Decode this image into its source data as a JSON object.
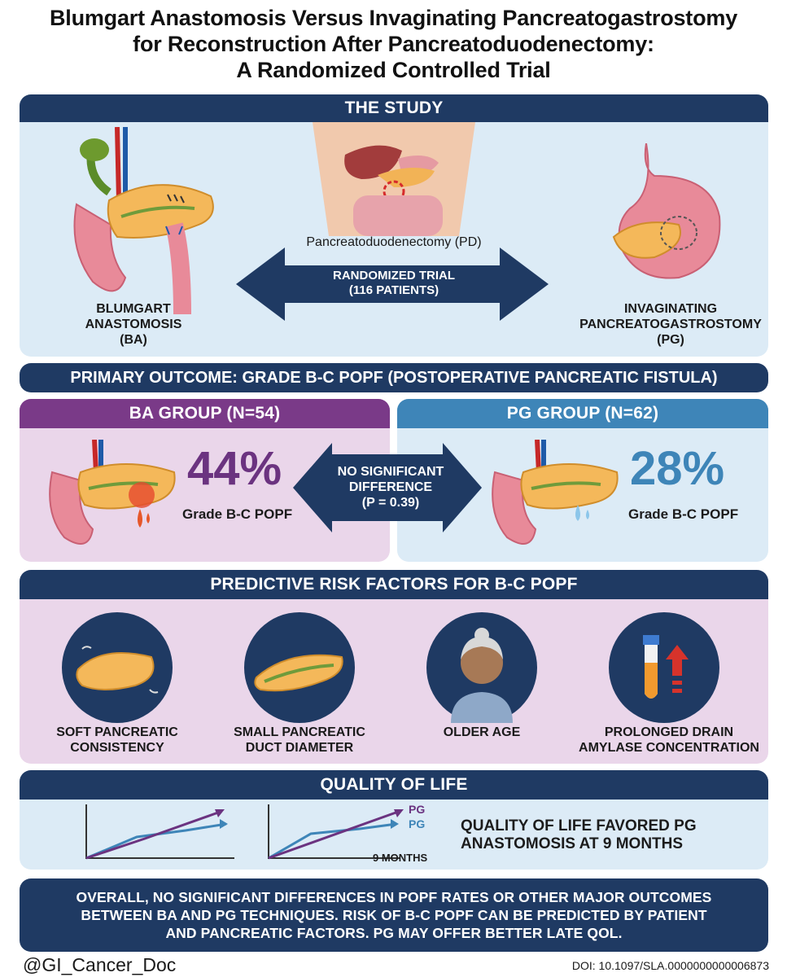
{
  "title": {
    "line1": "Blumgart Anastomosis Versus Invaginating Pancreatogastrostomy",
    "line2": "for Reconstruction After Pancreatoduodenectomy:",
    "line3": "A Randomized Controlled Trial"
  },
  "study": {
    "header": "THE STUDY",
    "procedure_label": "Pancreatoduodenectomy (PD)",
    "randomized_line1": "RANDOMIZED TRIAL",
    "randomized_line2": "(116 PATIENTS)",
    "left_label_line1": "BLUMGART",
    "left_label_line2": "ANASTOMOSIS",
    "left_label_line3": "(BA)",
    "right_label_line1": "INVAGINATING",
    "right_label_line2": "PANCREATOGASTROSTOMY",
    "right_label_line3": "(PG)"
  },
  "primary_outcome": "PRIMARY OUTCOME: GRADE B-C POPF (POSTOPERATIVE PANCREATIC FISTULA)",
  "ba_group": {
    "header": "BA GROUP (N=54)",
    "percent": "44%",
    "sub": "Grade B-C POPF"
  },
  "pg_group": {
    "header": "PG GROUP (N=62)",
    "percent": "28%",
    "sub": "Grade B-C POPF"
  },
  "comparison": {
    "line1": "NO SIGNIFICANT",
    "line2": "DIFFERENCE",
    "line3": "(P = 0.39)"
  },
  "risk": {
    "header": "PREDICTIVE RISK FACTORS FOR B-C POPF",
    "items": [
      {
        "line1": "SOFT PANCREATIC",
        "line2": "CONSISTENCY",
        "icon": "soft-pancreas-icon"
      },
      {
        "line1": "SMALL PANCREATIC",
        "line2": "DUCT DIAMETER",
        "icon": "pancreatic-duct-icon"
      },
      {
        "line1": "OLDER AGE",
        "line2": "",
        "icon": "older-person-icon"
      },
      {
        "line1": "PROLONGED DRAIN",
        "line2": "AMYLASE CONCENTRATION",
        "icon": "test-tube-icon"
      }
    ]
  },
  "qol": {
    "header": "QUALITY OF LIFE",
    "pg_label_1": "PG",
    "pg_label_2": "PG",
    "time_label": "9 MONTHS",
    "text_line1": "QUALITY OF LIFE FAVORED PG",
    "text_line2": "ANASTOMOSIS AT 9 MONTHS"
  },
  "conclusion": {
    "line1": "OVERALL, NO SIGNIFICANT DIFFERENCES IN POPF RATES OR OTHER MAJOR OUTCOMES",
    "line2": "BETWEEN BA AND PG TECHNIQUES. RISK OF B-C POPF CAN BE PREDICTED BY PATIENT",
    "line3": "AND PANCREATIC FACTORS. PG MAY OFFER BETTER LATE QOL."
  },
  "footer": {
    "handle": "@GI_Cancer_Doc",
    "doi": "DOI: 10.1097/SLA.0000000000006873"
  },
  "colors": {
    "navy": "#1f3a63",
    "purple": "#7a3a88",
    "blue": "#3e85b8",
    "light_blue_bg": "#dcebf6",
    "light_purple_bg": "#ead6ea",
    "ba_percent": "#6b3380",
    "pg_percent": "#3e85b8"
  }
}
